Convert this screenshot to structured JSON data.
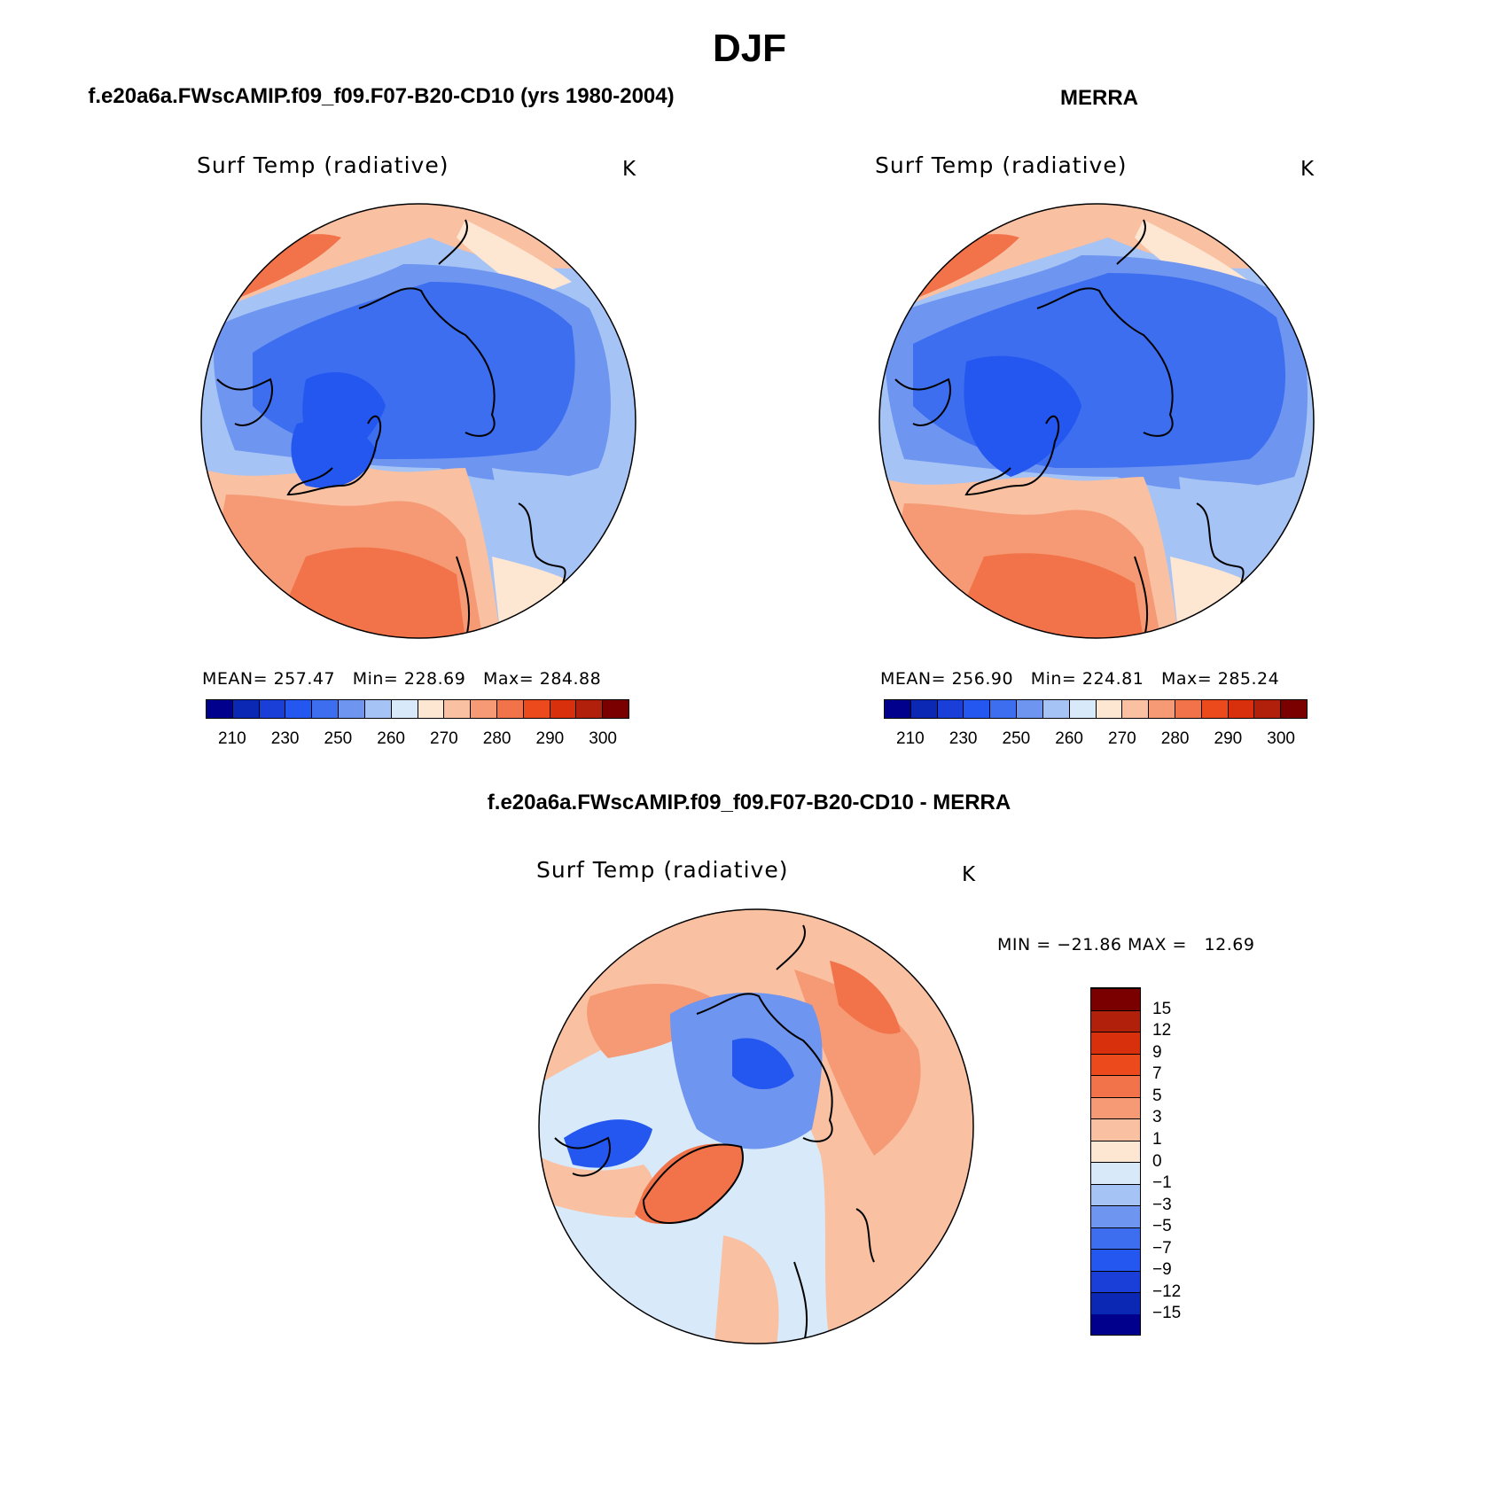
{
  "title": "DJF",
  "panels": {
    "model": {
      "heading": "f.e20a6a.FWscAMIP.f09_f09.F07-B20-CD10 (yrs 1980-2004)",
      "variable": "Surf Temp (radiative)",
      "units": "K",
      "stats": {
        "mean_label": "MEAN=",
        "mean": "257.47",
        "min_label": "Min=",
        "min": "228.69",
        "max_label": "Max=",
        "max": "284.88"
      }
    },
    "obs": {
      "heading": "MERRA",
      "variable": "Surf Temp (radiative)",
      "units": "K",
      "stats": {
        "mean_label": "MEAN=",
        "mean": "256.90",
        "min_label": "Min=",
        "min": "224.81",
        "max_label": "Max=",
        "max": "285.24"
      }
    },
    "diff": {
      "heading": "f.e20a6a.FWscAMIP.f09_f09.F07-B20-CD10 - MERRA",
      "variable": "Surf Temp (radiative)",
      "units": "K",
      "minmax": "MIN = −21.86 MAX =   12.69"
    }
  },
  "colorbars": {
    "abs_tick_labels": [
      "210",
      "230",
      "250",
      "260",
      "270",
      "280",
      "290",
      "300"
    ],
    "abs_colors": [
      "#00008c",
      "#0a28b4",
      "#1a3fd8",
      "#2457f0",
      "#3d6ef0",
      "#6e95f0",
      "#a5c3f5",
      "#d8e9fa",
      "#fde6d2",
      "#f9c0a2",
      "#f59a74",
      "#f2734a",
      "#ec4a1c",
      "#d8300c",
      "#b0200a",
      "#7a0000"
    ],
    "diff_tick_labels": [
      "−15",
      "−12",
      "−9",
      "−7",
      "−5",
      "−3",
      "−1",
      "0",
      "1",
      "3",
      "5",
      "7",
      "9",
      "12",
      "15"
    ],
    "diff_colors": [
      "#00008c",
      "#0a28b4",
      "#1a3fd8",
      "#2457f0",
      "#3d6ef0",
      "#6e95f0",
      "#a5c3f5",
      "#d8e9fa",
      "#fde6d2",
      "#f9c0a2",
      "#f59a74",
      "#f2734a",
      "#ec4a1c",
      "#d8300c",
      "#b0200a",
      "#7a0000"
    ]
  },
  "field_colors": {
    "abs_warm_outer": "#f2734a",
    "abs_warm_mid": "#f59a74",
    "abs_warm_light": "#f9c0a2",
    "abs_pale": "#fde6d2",
    "abs_light_blue": "#a5c3f5",
    "abs_mid_blue": "#6e95f0",
    "abs_blue": "#3d6ef0",
    "abs_deep_blue": "#2457f0",
    "diff_pale_blue": "#d8e9fa",
    "diff_light_red": "#f9c0a2",
    "diff_mid_red": "#f59a74",
    "diff_red": "#f2734a",
    "diff_blue": "#6e95f0",
    "diff_deep_blue": "#2457f0"
  }
}
